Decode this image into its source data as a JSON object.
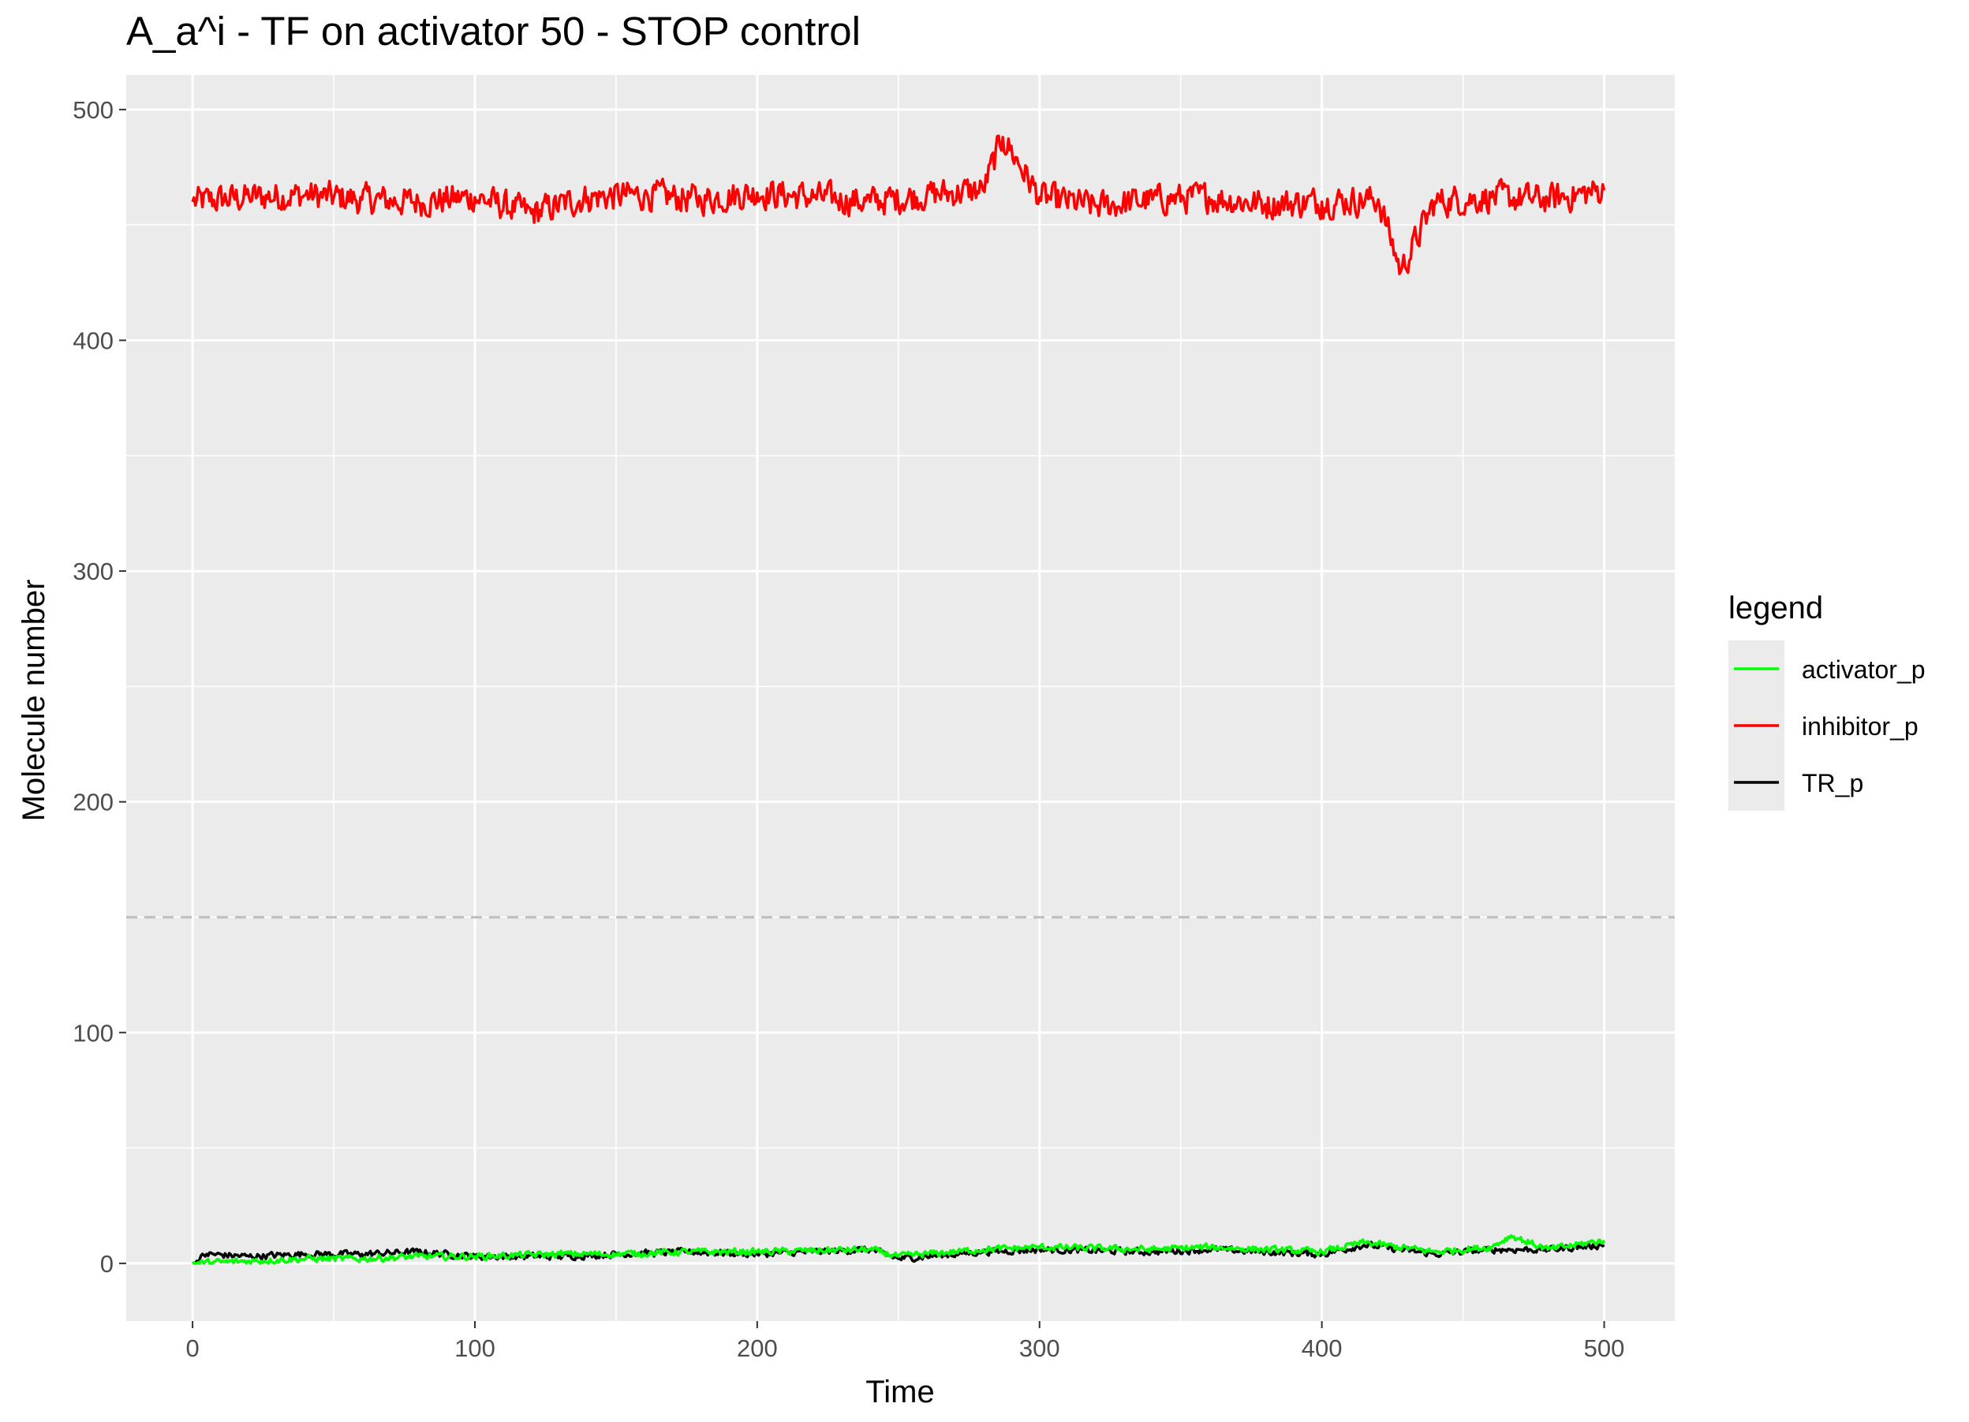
{
  "chart_data": {
    "type": "line",
    "title": "A_a^i - TF on activator 50 - STOP control",
    "xlabel": "Time",
    "ylabel": "Molecule number",
    "xlim": [
      -23.5,
      525
    ],
    "ylim": [
      -25,
      515
    ],
    "x_ticks": [
      0,
      100,
      200,
      300,
      400,
      500
    ],
    "y_ticks": [
      0,
      100,
      200,
      300,
      400,
      500
    ],
    "x_tick_labels": [
      "0",
      "100",
      "200",
      "300",
      "400",
      "500"
    ],
    "y_tick_labels": [
      "0",
      "100",
      "200",
      "300",
      "400",
      "500"
    ],
    "reference_line": {
      "y": 150,
      "style": "dashed",
      "color": "#bdbdbd"
    },
    "grid": true,
    "background": "#ebebeb",
    "legend": {
      "title": "legend",
      "position": "right",
      "entries": [
        {
          "label": "activator_p",
          "color": "#00ff00"
        },
        {
          "label": "inhibitor_p",
          "color": "#ff0000"
        },
        {
          "label": "TR_p",
          "color": "#000000"
        }
      ]
    },
    "series": [
      {
        "name": "inhibitor_p",
        "color": "#ff0000",
        "x": [
          0,
          20,
          40,
          60,
          80,
          100,
          120,
          140,
          160,
          180,
          200,
          220,
          240,
          260,
          280,
          287,
          300,
          320,
          340,
          360,
          380,
          400,
          420,
          428,
          440,
          460,
          480,
          500
        ],
        "y": [
          460,
          462,
          463,
          461,
          460,
          462,
          455,
          462,
          463,
          461,
          464,
          462,
          460,
          463,
          465,
          488,
          462,
          458,
          461,
          462,
          459,
          460,
          461,
          430,
          460,
          462,
          461,
          465
        ],
        "mean": 461,
        "noise": 9
      },
      {
        "name": "TR_p",
        "color": "#000000",
        "x": [
          0,
          5,
          20,
          40,
          60,
          80,
          100,
          130,
          150,
          175,
          200,
          240,
          250,
          280,
          300,
          340,
          360,
          400,
          415,
          440,
          460,
          480,
          500
        ],
        "y": [
          0,
          4,
          3,
          4,
          4,
          5,
          3,
          3,
          4,
          5,
          4,
          6,
          2,
          5,
          6,
          5,
          6,
          4,
          8,
          4,
          6,
          6,
          8
        ],
        "noise": 2
      },
      {
        "name": "activator_p",
        "color": "#00ff00",
        "x": [
          0,
          20,
          40,
          60,
          80,
          100,
          130,
          150,
          175,
          200,
          240,
          250,
          280,
          300,
          340,
          360,
          400,
          415,
          440,
          460,
          467,
          480,
          500
        ],
        "y": [
          0,
          1,
          2,
          2,
          3,
          3,
          4,
          4,
          5,
          5,
          6,
          3,
          6,
          7,
          6,
          7,
          5,
          9,
          5,
          7,
          12,
          6,
          10
        ],
        "noise": 2
      }
    ]
  }
}
